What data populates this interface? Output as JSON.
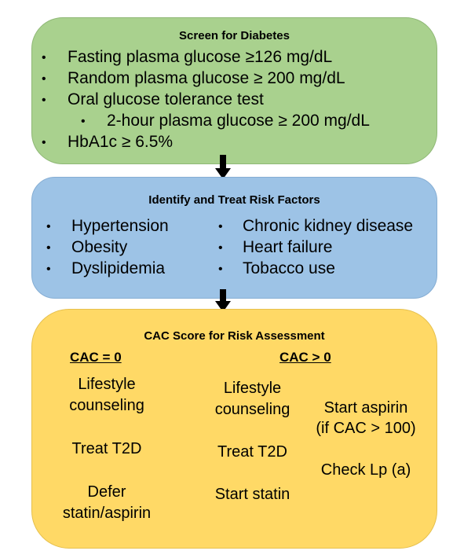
{
  "screen": {
    "title": "Screen for Diabetes",
    "items": [
      "Fasting plasma glucose ≥126 mg/dL",
      "Random plasma glucose ≥ 200 mg/dL",
      "Oral glucose tolerance test",
      "2-hour plasma glucose ≥ 200 mg/dL",
      "HbA1c ≥ 6.5%"
    ],
    "bullet": "•"
  },
  "risk": {
    "title": "Identify and Treat Risk Factors",
    "left": [
      "Hypertension",
      "Obesity",
      "Dyslipidemia"
    ],
    "right": [
      "Chronic kidney disease",
      "Heart failure",
      "Tobacco use"
    ]
  },
  "cac": {
    "title": "CAC Score for Risk Assessment",
    "zero_header": "CAC = 0",
    "pos_header": "CAC > 0",
    "zero": {
      "lifestyle": "Lifestyle counseling",
      "treat": "Treat T2D",
      "defer": "Defer statin/aspirin"
    },
    "pos": {
      "lifestyle": "Lifestyle counseling",
      "treat": "Treat T2D",
      "statin": "Start statin",
      "aspirin": "Start aspirin",
      "aspirin_note": "(if CAC > 100)",
      "lpa": "Check Lp (a)"
    }
  },
  "colors": {
    "screen_box": "#a9d18e",
    "risk_box": "#9dc3e6",
    "cac_box": "#ffd966",
    "arrow": "#000000"
  }
}
